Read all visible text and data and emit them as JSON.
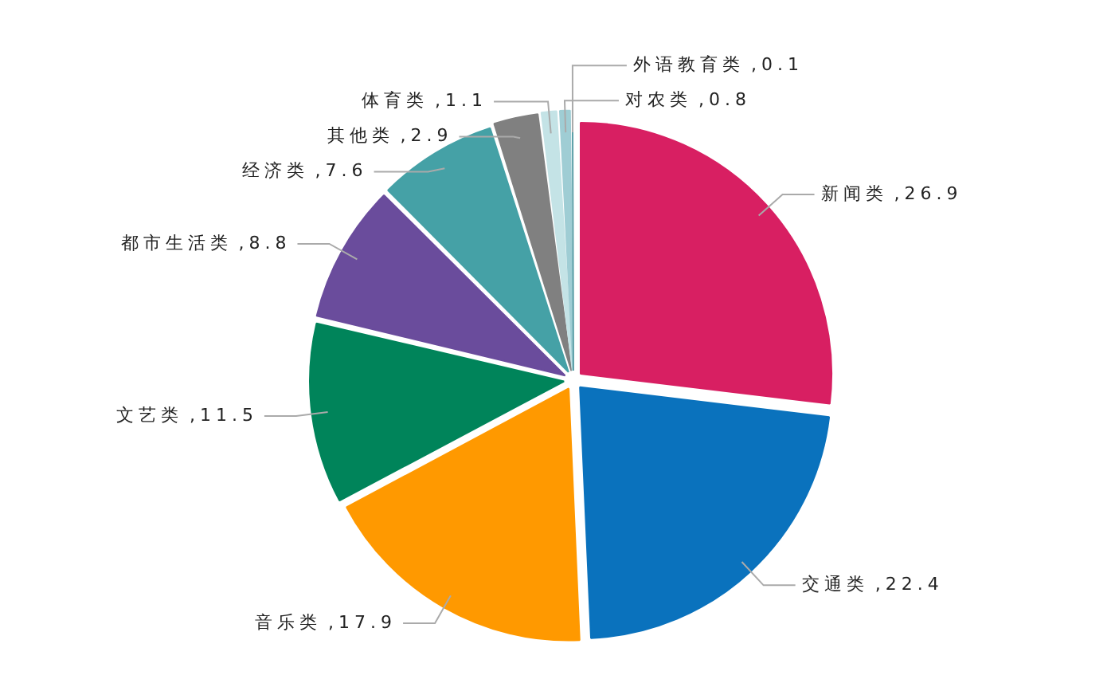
{
  "chart_data": {
    "type": "pie",
    "categories": [
      "新闻类",
      "交通类",
      "音乐类",
      "文艺类",
      "都市生活类",
      "经济类",
      "其他类",
      "体育类",
      "对农类",
      "外语教育类"
    ],
    "values": [
      26.9,
      22.4,
      17.9,
      11.5,
      8.8,
      7.6,
      2.9,
      1.1,
      0.8,
      0.1
    ],
    "colors": [
      "#d81f62",
      "#0a72bd",
      "#ff9900",
      "#00845a",
      "#6a4c9c",
      "#45a1a6",
      "#808080",
      "#c4e3e6",
      "#9fcdd4",
      "#5a9ea6"
    ],
    "value_labels": [
      ",26.9",
      ",22.4",
      ",17.9",
      ",11.5",
      ",8.8",
      ",7.6",
      ",2.9",
      ",1.1",
      ",0.8",
      ",0.1"
    ],
    "legend": false
  }
}
